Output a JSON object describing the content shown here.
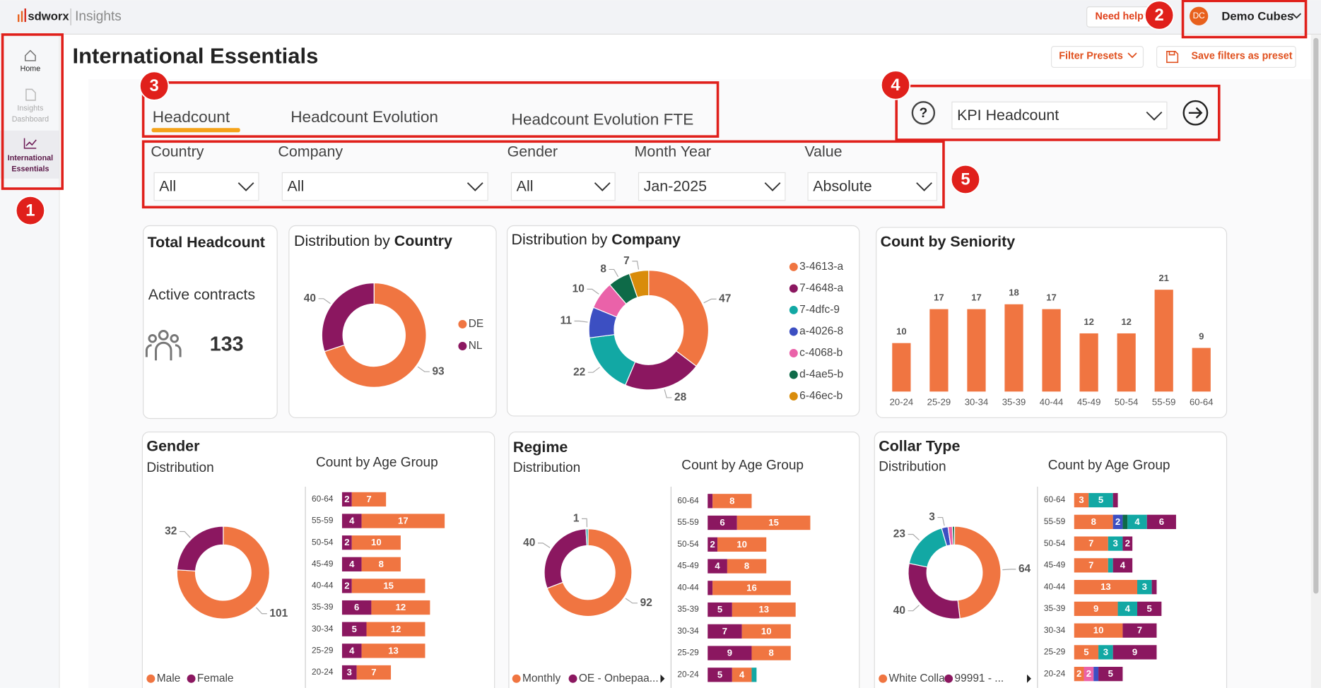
{
  "app": {
    "brand": "sdworx",
    "product": "Insights",
    "help_button": "Need help?",
    "user": {
      "initials": "DC",
      "name": "Demo Cubes"
    }
  },
  "sidebar": [
    {
      "label": [
        "Home"
      ]
    },
    {
      "label": [
        "Insights",
        "Dashboard"
      ]
    },
    {
      "label": [
        "International",
        "Essentials"
      ]
    }
  ],
  "callouts": [
    1,
    2,
    3,
    4,
    5
  ],
  "page_title": "International Essentials",
  "actions": [
    "Filter Presets",
    "Save filters as preset"
  ],
  "tabs": [
    "Headcount",
    "Headcount Evolution",
    "Headcount Evolution FTE"
  ],
  "kpi_select": "KPI Headcount",
  "filters": [
    {
      "label": "Country",
      "value": "All"
    },
    {
      "label": "Company",
      "value": "All"
    },
    {
      "label": "Gender",
      "value": "All"
    },
    {
      "label": "Month Year",
      "value": "Jan-2025"
    },
    {
      "label": "Value",
      "value": "Absolute"
    }
  ],
  "total_headcount": {
    "title": "Total Headcount",
    "label": "Active contracts",
    "value": 133
  },
  "country": {
    "type": "pie",
    "title": [
      "Distribution by",
      "Country"
    ],
    "categories": [
      "DE",
      "NL"
    ],
    "values": [
      93,
      40
    ],
    "colors": [
      "#f07541",
      "#8b1760"
    ]
  },
  "company": {
    "type": "pie",
    "title": [
      "Distribution by",
      "Company"
    ],
    "categories": [
      "3-4613-a",
      "7-4648-a",
      "7-4dfc-9",
      "a-4026-8",
      "c-4068-b",
      "d-4ae5-b",
      "6-46ec-b"
    ],
    "values": [
      47,
      28,
      22,
      11,
      10,
      8,
      7
    ],
    "colors": [
      "#f07541",
      "#8b1760",
      "#12a8a4",
      "#3c4fc2",
      "#ea62a9",
      "#0e6a48",
      "#d98c0b"
    ]
  },
  "seniority": {
    "type": "bar",
    "title": "Count by Seniority",
    "categories": [
      "20-24",
      "25-29",
      "30-34",
      "35-39",
      "40-44",
      "45-49",
      "50-54",
      "55-59",
      "60-64"
    ],
    "values": [
      10,
      17,
      17,
      18,
      17,
      12,
      12,
      21,
      9
    ],
    "color": "#f07541"
  },
  "gender": {
    "title": "Gender",
    "subtitle": "Distribution",
    "donut": {
      "type": "pie",
      "categories": [
        "Male",
        "Female"
      ],
      "values": [
        101,
        32
      ],
      "colors": [
        "#f07541",
        "#8b1760"
      ]
    },
    "age": {
      "type": "bar",
      "orientation": "horizontal",
      "stacked": true,
      "title": "Count by Age Group",
      "categories": [
        "60-64",
        "55-59",
        "50-54",
        "45-49",
        "40-44",
        "35-39",
        "30-34",
        "25-29",
        "20-24"
      ],
      "series": [
        {
          "color": "#8b1760",
          "values": [
            2,
            4,
            2,
            4,
            2,
            6,
            5,
            4,
            3
          ]
        },
        {
          "color": "#f07541",
          "values": [
            7,
            17,
            10,
            8,
            15,
            12,
            12,
            13,
            7
          ]
        }
      ]
    }
  },
  "regime": {
    "title": "Regime",
    "subtitle": "Distribution",
    "donut": {
      "type": "pie",
      "categories": [
        "Monthly",
        "OE - Onbepaa...",
        null
      ],
      "values": [
        92,
        40,
        1
      ],
      "colors": [
        "#f07541",
        "#8b1760",
        "#12a8a4"
      ]
    },
    "age": {
      "type": "bar",
      "orientation": "horizontal",
      "stacked": true,
      "title": "Count by Age Group",
      "categories": [
        "60-64",
        "55-59",
        "50-54",
        "45-49",
        "40-44",
        "35-39",
        "30-34",
        "25-29",
        "20-24"
      ],
      "series": [
        {
          "color": "#8b1760",
          "values": [
            1,
            6,
            2,
            4,
            1,
            5,
            7,
            9,
            5
          ]
        },
        {
          "color": "#f07541",
          "values": [
            8,
            15,
            10,
            8,
            16,
            13,
            10,
            8,
            4
          ]
        },
        {
          "color": "#12a8a4",
          "values": [
            0,
            0,
            0,
            0,
            0,
            0,
            0,
            0,
            1
          ]
        }
      ]
    }
  },
  "collar": {
    "title": "Collar Type",
    "subtitle": "Distribution",
    "donut": {
      "type": "pie",
      "categories": [
        "White Collar",
        "99991 - ...",
        null,
        null,
        null,
        null
      ],
      "values": [
        64,
        40,
        23,
        3,
        2,
        1
      ],
      "colors": [
        "#f07541",
        "#8b1760",
        "#12a8a4",
        "#3c4fc2",
        "#ea62a9",
        "#0e6a48"
      ]
    },
    "age": {
      "type": "bar",
      "orientation": "horizontal",
      "stacked": true,
      "title": "Count by Age Group",
      "categories": [
        "60-64",
        "55-59",
        "50-54",
        "45-49",
        "40-44",
        "35-39",
        "30-34",
        "25-29",
        "20-24"
      ],
      "series": [
        {
          "color": "#f07541",
          "values": [
            3,
            8,
            7,
            7,
            13,
            9,
            10,
            5,
            2
          ]
        },
        {
          "color": "#ea62a9",
          "values": [
            0,
            0,
            0,
            0,
            0,
            0,
            0,
            0,
            2
          ]
        },
        {
          "color": "#3c4fc2",
          "values": [
            0,
            2,
            0,
            0,
            0,
            0,
            0,
            0,
            1
          ]
        },
        {
          "color": "#0e6a48",
          "values": [
            0,
            1,
            0,
            0,
            0,
            0,
            0,
            0,
            0
          ]
        },
        {
          "color": "#12a8a4",
          "values": [
            5,
            4,
            3,
            1,
            3,
            4,
            0,
            3,
            0
          ]
        },
        {
          "color": "#8b1760",
          "values": [
            1,
            6,
            2,
            4,
            1,
            5,
            7,
            9,
            5
          ]
        }
      ]
    }
  }
}
